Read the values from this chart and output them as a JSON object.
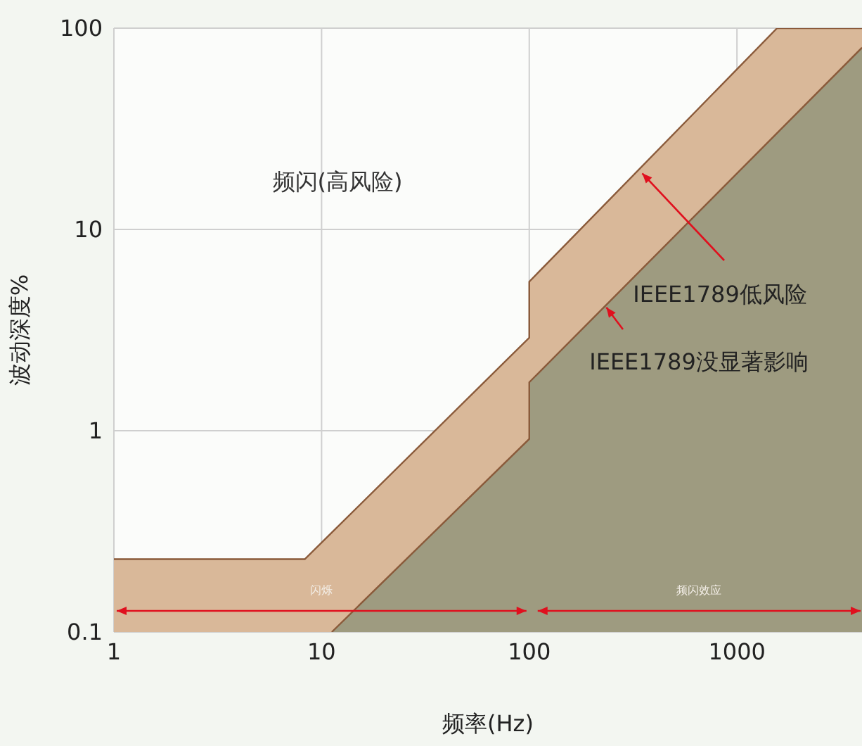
{
  "chart_data": {
    "type": "area",
    "xlabel": "频率(Hz)",
    "ylabel": "波动深度%",
    "log": "xy",
    "grid": true,
    "xlim": [
      1,
      4000
    ],
    "xticks": [
      1,
      10,
      100,
      1000
    ],
    "ylim": [
      0.1,
      100
    ],
    "yticks": [
      0.1,
      1,
      10,
      100
    ],
    "series": [
      {
        "color": "#d9b899",
        "x": [
          1,
          8.3,
          100,
          100,
          1560,
          4000
        ],
        "values": [
          0.23,
          0.23,
          2.9,
          5.5,
          100,
          100
        ]
      },
      {
        "color": "#9e9b80",
        "x": [
          11.2,
          100,
          100,
          4000
        ],
        "values": [
          0.1,
          0.91,
          1.74,
          80
        ]
      }
    ],
    "annotations": [
      "频闪(高风险)",
      {
        "text": "IEEE1789低风险",
        "x": 350,
        "y": 19
      },
      {
        "text": "IEEE1789没显著影响",
        "x": 235,
        "y": 4.1
      },
      "闪烁",
      "频闪效应"
    ]
  }
}
